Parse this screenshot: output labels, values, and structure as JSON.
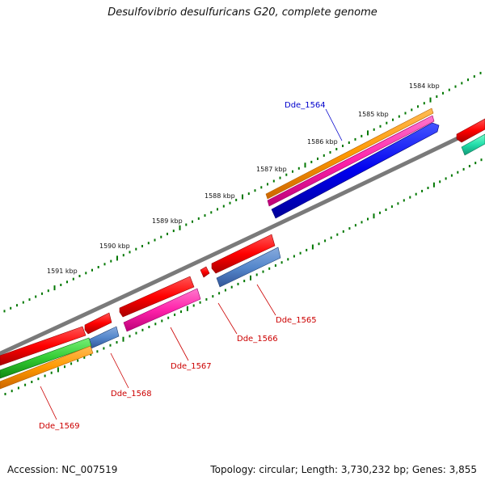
{
  "title": "Desulfovibrio desulfuricans G20, complete genome",
  "footer": {
    "accession": "Accession: NC_007519",
    "topology": "Topology: circular; Length: 3,730,232 bp; Genes: 3,855"
  },
  "ruler_labels": [
    "1584 kbp",
    "1585 kbp",
    "1586 kbp",
    "1587 kbp",
    "1588 kbp",
    "1589 kbp",
    "1590 kbp",
    "1591 kbp"
  ],
  "gene_labels": {
    "dde_1564": "Dde_1564",
    "dde_1565": "Dde_1565",
    "dde_1566": "Dde_1566",
    "dde_1567": "Dde_1567",
    "dde_1568": "Dde_1568",
    "dde_1569": "Dde_1569"
  },
  "colors": {
    "backbone": "#808080",
    "red": "#ff0000",
    "orange": "#ff9900",
    "magenta": "#ff22aa",
    "blue": "#0000ff",
    "steelblue": "#5588cc",
    "green": "#33cc33",
    "teal": "#22ddaa",
    "ticks": "#007700",
    "label_blue": "#0000cc",
    "label_red": "#cc0000"
  }
}
